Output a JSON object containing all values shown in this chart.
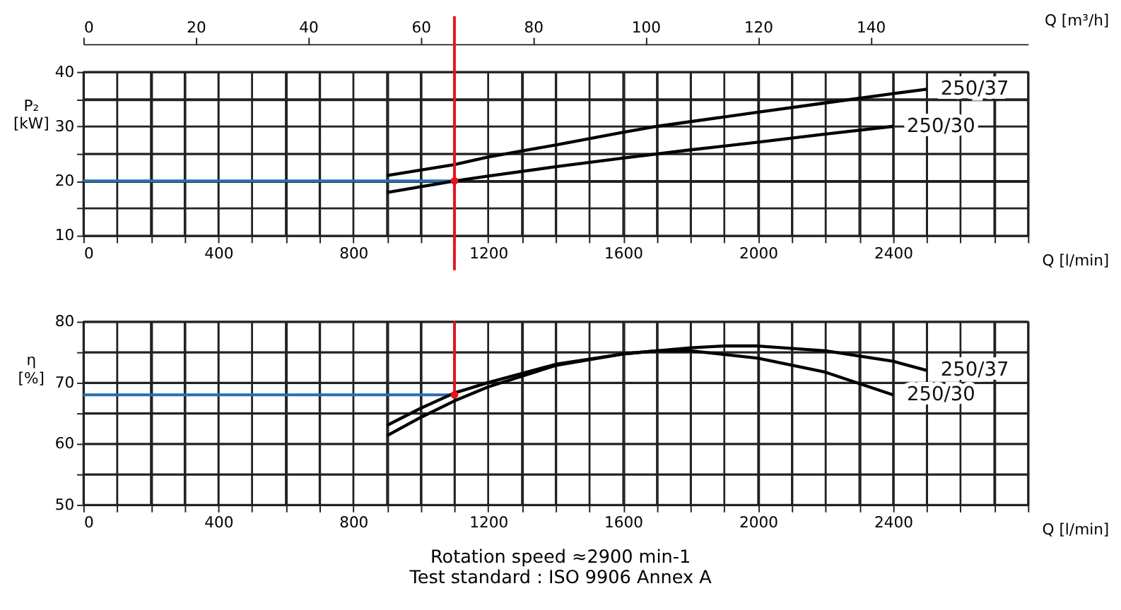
{
  "chart_data": [
    {
      "type": "line",
      "ylabel": "P₂ [kW]",
      "xlabel": "Q [l/min]",
      "x2label": "Q [m³/h]",
      "xlim": [
        0,
        2800
      ],
      "xticks": [
        0,
        {
          "value": 100,
          "label": null
        },
        {
          "value": 200,
          "label": null
        },
        {
          "value": 300,
          "label": null
        },
        400,
        {
          "value": 500,
          "label": null
        },
        {
          "value": 600,
          "label": null
        },
        {
          "value": 700,
          "label": null
        },
        800,
        {
          "value": 900,
          "label": null
        },
        {
          "value": 1000,
          "label": null
        },
        {
          "value": 1100,
          "label": null
        },
        1200,
        {
          "value": 1300,
          "label": null
        },
        {
          "value": 1400,
          "label": null
        },
        {
          "value": 1500,
          "label": null
        },
        1600,
        {
          "value": 1700,
          "label": null
        },
        {
          "value": 1800,
          "label": null
        },
        {
          "value": 1900,
          "label": null
        },
        2000,
        {
          "value": 2100,
          "label": null
        },
        {
          "value": 2200,
          "label": null
        },
        {
          "value": 2300,
          "label": null
        },
        2400,
        {
          "value": 2500,
          "label": null
        },
        {
          "value": 2600,
          "label": null
        },
        {
          "value": 2700,
          "label": null
        },
        {
          "value": 2800,
          "label": null
        }
      ],
      "x2lim": [
        0,
        168
      ],
      "x2ticks": [
        0,
        20,
        40,
        60,
        80,
        100,
        120,
        140
      ],
      "ylim": [
        10,
        40
      ],
      "yticks": [
        10,
        {
          "value": 15,
          "label": null
        },
        20,
        {
          "value": 25,
          "label": null
        },
        30,
        {
          "value": 35,
          "label": null
        },
        40
      ],
      "grid": true,
      "series": [
        {
          "name": "250/37",
          "color": "#000000",
          "line_style": "solid",
          "x": [
            900,
            1100,
            1200,
            1400,
            1600,
            1700,
            2000,
            2200,
            2400,
            2500
          ],
          "values": [
            21,
            23,
            24.4,
            26.6,
            28.9,
            30,
            32.6,
            34.3,
            36,
            36.8
          ]
        },
        {
          "name": "250/30",
          "color": "#000000",
          "line_style": "solid",
          "x": [
            900,
            1100,
            1200,
            1400,
            1600,
            1800,
            2000,
            2200,
            2400
          ],
          "values": [
            17.9,
            20,
            20.9,
            22.6,
            24.2,
            25.7,
            27.1,
            28.6,
            30
          ]
        }
      ],
      "ref_lines": [
        {
          "axis": "x",
          "value": 1100,
          "color": "#e8141c"
        },
        {
          "axis": "y",
          "value": 20,
          "color": "#2a6fae"
        }
      ]
    },
    {
      "type": "line",
      "ylabel": "η [%]",
      "xlabel": "Q [l/min]",
      "xlim": [
        0,
        2800
      ],
      "xticks": [
        0,
        {
          "value": 100,
          "label": null
        },
        {
          "value": 200,
          "label": null
        },
        {
          "value": 300,
          "label": null
        },
        400,
        {
          "value": 500,
          "label": null
        },
        {
          "value": 600,
          "label": null
        },
        {
          "value": 700,
          "label": null
        },
        800,
        {
          "value": 900,
          "label": null
        },
        {
          "value": 1000,
          "label": null
        },
        {
          "value": 1100,
          "label": null
        },
        1200,
        {
          "value": 1300,
          "label": null
        },
        {
          "value": 1400,
          "label": null
        },
        {
          "value": 1500,
          "label": null
        },
        1600,
        {
          "value": 1700,
          "label": null
        },
        {
          "value": 1800,
          "label": null
        },
        {
          "value": 1900,
          "label": null
        },
        2000,
        {
          "value": 2100,
          "label": null
        },
        {
          "value": 2200,
          "label": null
        },
        {
          "value": 2300,
          "label": null
        },
        2400,
        {
          "value": 2500,
          "label": null
        },
        {
          "value": 2600,
          "label": null
        },
        {
          "value": 2700,
          "label": null
        },
        {
          "value": 2800,
          "label": null
        }
      ],
      "ylim": [
        50,
        80
      ],
      "yticks": [
        50,
        {
          "value": 55,
          "label": null
        },
        60,
        {
          "value": 65,
          "label": null
        },
        70,
        {
          "value": 75,
          "label": null
        },
        80
      ],
      "grid": true,
      "series": [
        {
          "name": "250/37",
          "color": "#000000",
          "line_style": "solid",
          "x": [
            900,
            1000,
            1100,
            1200,
            1400,
            1600,
            1800,
            1900,
            2000,
            2200,
            2400,
            2500
          ],
          "values": [
            63,
            65.8,
            68.3,
            70,
            73,
            74.7,
            75.7,
            76,
            76,
            75.2,
            73.5,
            72
          ]
        },
        {
          "name": "250/30",
          "color": "#000000",
          "line_style": "solid",
          "x": [
            900,
            1000,
            1100,
            1200,
            1400,
            1600,
            1700,
            1800,
            2000,
            2200,
            2400
          ],
          "values": [
            61.3,
            64.3,
            67,
            69.3,
            72.8,
            74.7,
            75.2,
            75.2,
            74,
            71.7,
            68
          ]
        }
      ],
      "ref_lines": [
        {
          "axis": "x",
          "value": 1100,
          "color": "#e8141c"
        },
        {
          "axis": "y",
          "value": 68,
          "color": "#2a6fae"
        }
      ],
      "annotations": [
        "Rotation speed ≈2900 min-1",
        "Test standard : ISO 9906 Annex A"
      ]
    }
  ]
}
